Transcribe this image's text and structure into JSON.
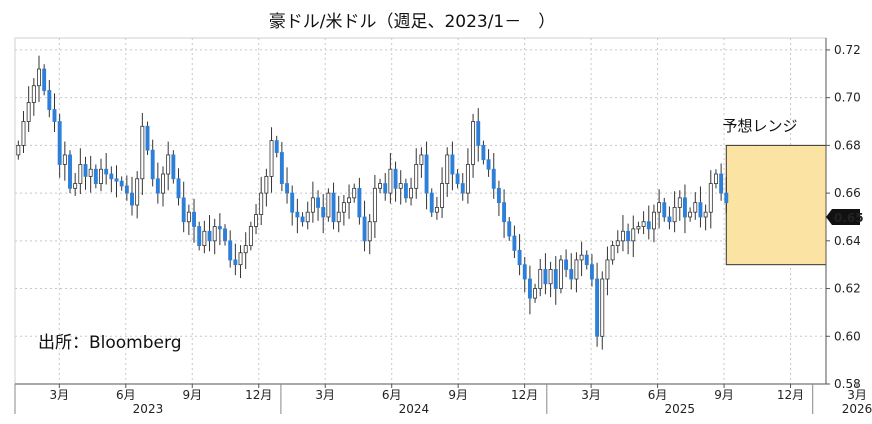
{
  "chart_data": {
    "type": "candlestick",
    "title": "豪ドル/米ドル（週足、2023/1－　）",
    "source": "出所：Bloomberg",
    "range_label": "予想レンジ",
    "ylim": [
      0.58,
      0.725
    ],
    "yticks": [
      "0.72",
      "0.70",
      "0.68",
      "0.66",
      "0.64",
      "0.62",
      "0.60",
      "0.58"
    ],
    "ytick_values": [
      0.72,
      0.7,
      0.68,
      0.66,
      0.64,
      0.62,
      0.6,
      0.58
    ],
    "xlim": [
      0,
      36.6
    ],
    "month_ticks": [
      {
        "label": "3月",
        "m": 2
      },
      {
        "label": "6月",
        "m": 5
      },
      {
        "label": "9月",
        "m": 8
      },
      {
        "label": "12月",
        "m": 11
      },
      {
        "label": "3月",
        "m": 14
      },
      {
        "label": "6月",
        "m": 17
      },
      {
        "label": "9月",
        "m": 20
      },
      {
        "label": "12月",
        "m": 23
      },
      {
        "label": "3月",
        "m": 26
      },
      {
        "label": "6月",
        "m": 29
      },
      {
        "label": "9月",
        "m": 32
      },
      {
        "label": "12月",
        "m": 35
      },
      {
        "label": "3月",
        "m": 38
      }
    ],
    "years": [
      {
        "label": "2023",
        "m": 6
      },
      {
        "label": "2024",
        "m": 18
      },
      {
        "label": "2025",
        "m": 30
      },
      {
        "label": "2026",
        "m": 38
      }
    ],
    "year_separators": [
      12,
      24,
      36
    ],
    "forecast_range": {
      "y_low": 0.63,
      "y_high": 0.68,
      "x_start": 32.1,
      "x_end": 37.5
    },
    "last_value": "0.65",
    "colors": {
      "up": "#ffffff",
      "down": "#2e7fd8",
      "wick": "#333333",
      "range_fill": "#fbe3a4",
      "range_border": "#333333",
      "tag_bg": "#111111",
      "tag_text": "#ffffff"
    },
    "closes": [
      0.68,
      0.69,
      0.698,
      0.705,
      0.712,
      0.703,
      0.695,
      0.69,
      0.672,
      0.676,
      0.662,
      0.664,
      0.672,
      0.667,
      0.67,
      0.664,
      0.67,
      0.668,
      0.666,
      0.665,
      0.663,
      0.66,
      0.655,
      0.666,
      0.688,
      0.678,
      0.666,
      0.66,
      0.668,
      0.676,
      0.666,
      0.658,
      0.648,
      0.652,
      0.646,
      0.638,
      0.644,
      0.64,
      0.646,
      0.645,
      0.64,
      0.632,
      0.63,
      0.635,
      0.638,
      0.646,
      0.651,
      0.66,
      0.667,
      0.682,
      0.677,
      0.664,
      0.66,
      0.652,
      0.65,
      0.648,
      0.652,
      0.658,
      0.654,
      0.65,
      0.66,
      0.648,
      0.652,
      0.656,
      0.658,
      0.662,
      0.65,
      0.64,
      0.648,
      0.662,
      0.664,
      0.66,
      0.67,
      0.662,
      0.664,
      0.658,
      0.662,
      0.672,
      0.676,
      0.66,
      0.652,
      0.654,
      0.664,
      0.676,
      0.668,
      0.664,
      0.66,
      0.672,
      0.69,
      0.68,
      0.674,
      0.67,
      0.662,
      0.656,
      0.648,
      0.642,
      0.636,
      0.63,
      0.624,
      0.616,
      0.62,
      0.628,
      0.622,
      0.628,
      0.62,
      0.632,
      0.628,
      0.624,
      0.632,
      0.634,
      0.63,
      0.624,
      0.6,
      0.624,
      0.632,
      0.638,
      0.64,
      0.644,
      0.64,
      0.645,
      0.646,
      0.648,
      0.645,
      0.652,
      0.656,
      0.65,
      0.648,
      0.654,
      0.658,
      0.65,
      0.652,
      0.656,
      0.65,
      0.652,
      0.664,
      0.668,
      0.66,
      0.656
    ]
  }
}
